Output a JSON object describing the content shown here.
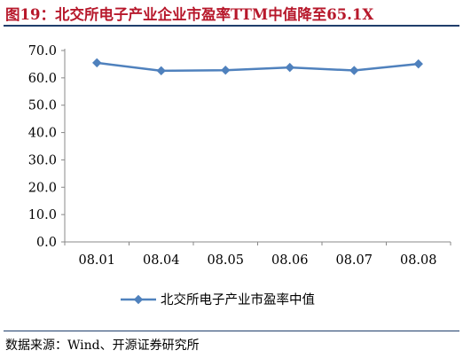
{
  "title": "图19：北交所电子产业企业市盈率TTM中值降至65.1X",
  "source": "数据来源：Wind、开源证券研究所",
  "colors": {
    "title": "#b7182b",
    "series": "#4f81bd",
    "rule": "#1f3e6b"
  },
  "chart_data": {
    "type": "line",
    "categories": [
      "08.01",
      "08.04",
      "08.05",
      "08.06",
      "08.07",
      "08.08"
    ],
    "series": [
      {
        "name": "北交所电子产业市盈率中值",
        "values": [
          65.5,
          62.6,
          62.8,
          63.8,
          62.7,
          65.1
        ],
        "marker": "diamond"
      }
    ],
    "yticks": [
      "0.0",
      "10.0",
      "20.0",
      "30.0",
      "40.0",
      "50.0",
      "60.0",
      "70.0"
    ],
    "ylim": [
      0,
      70
    ],
    "grid": false,
    "legend": "bottom"
  }
}
